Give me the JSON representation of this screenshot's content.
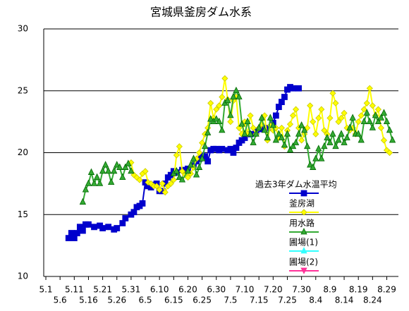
{
  "chart_data": {
    "type": "line",
    "title": "宮城県釜房ダム水系",
    "xlim": [
      -0.75,
      124.1
    ],
    "ylim": [
      10,
      30
    ],
    "yticks": [
      10,
      15,
      20,
      25,
      30
    ],
    "grid": true,
    "xticks": [
      {
        "value": 0,
        "label": "5.1"
      },
      {
        "value": 5,
        "label": "5.6"
      },
      {
        "value": 10,
        "label": "5.11"
      },
      {
        "value": 15,
        "label": "5.16"
      },
      {
        "value": 20,
        "label": "5.21"
      },
      {
        "value": 25,
        "label": "5.26"
      },
      {
        "value": 30,
        "label": "5.31"
      },
      {
        "value": 35,
        "label": "6.5"
      },
      {
        "value": 40,
        "label": "6.10"
      },
      {
        "value": 45,
        "label": "6.15"
      },
      {
        "value": 50,
        "label": "6.20"
      },
      {
        "value": 55,
        "label": "6.25"
      },
      {
        "value": 60,
        "label": "6.30"
      },
      {
        "value": 65,
        "label": "7.5"
      },
      {
        "value": 70,
        "label": "7.10"
      },
      {
        "value": 75,
        "label": "7.15"
      },
      {
        "value": 80,
        "label": "7.20"
      },
      {
        "value": 85,
        "label": "7.25"
      },
      {
        "value": 90,
        "label": "7.30"
      },
      {
        "value": 95,
        "label": "8.4"
      },
      {
        "value": 100,
        "label": "8.9"
      },
      {
        "value": 105,
        "label": "8.14"
      },
      {
        "value": 110,
        "label": "8.19"
      },
      {
        "value": 115,
        "label": "8.24"
      },
      {
        "value": 120,
        "label": "8.29"
      }
    ],
    "series": [
      {
        "name": "過去3年ダム水温平均",
        "color": "#0000cc",
        "marker": "square",
        "x": [
          8,
          9,
          10,
          11,
          12,
          13,
          14,
          15,
          17,
          19,
          20,
          22,
          24,
          25,
          27,
          28,
          30,
          31,
          32,
          33,
          34,
          35,
          36,
          37,
          38,
          39,
          40,
          41,
          42,
          43,
          44,
          45,
          46,
          48,
          50,
          52,
          53,
          54,
          55,
          56,
          57,
          58,
          59,
          60,
          61,
          62,
          64,
          65,
          66,
          67,
          68,
          69,
          70,
          72,
          74,
          76,
          78,
          80,
          81,
          82,
          83,
          84,
          85,
          86,
          87,
          89
        ],
        "values": [
          13.1,
          13.5,
          13.1,
          13.5,
          14.0,
          13.7,
          14.2,
          14.2,
          14.0,
          14.1,
          13.9,
          14.0,
          13.8,
          13.9,
          14.3,
          14.7,
          15.0,
          15.2,
          15.6,
          15.7,
          15.9,
          17.6,
          17.3,
          17.2,
          17.4,
          17.5,
          16.9,
          16.9,
          17.5,
          18.0,
          18.2,
          18.5,
          18.4,
          18.6,
          18.7,
          19.0,
          19.3,
          19.5,
          19.8,
          19.7,
          19.3,
          20.2,
          20.3,
          20.3,
          20.2,
          20.3,
          20.2,
          20.3,
          20.0,
          20.4,
          20.8,
          21.0,
          21.2,
          21.5,
          21.7,
          21.9,
          22.0,
          22.4,
          23.0,
          23.7,
          24.1,
          24.5,
          25.1,
          25.3,
          25.2,
          25.2
        ]
      },
      {
        "name": "釜房湖",
        "color": "#ffff00",
        "marker": "diamond",
        "x": [
          30,
          31,
          32,
          33,
          34,
          35,
          36,
          37,
          38,
          39,
          40,
          41,
          42,
          43,
          44,
          45,
          46,
          47,
          48,
          49,
          50,
          51,
          52,
          53,
          54,
          55,
          56,
          57,
          58,
          59,
          60,
          61,
          62,
          63,
          64,
          65,
          66,
          67,
          68,
          69,
          70,
          71,
          72,
          73,
          74,
          75,
          76,
          77,
          78,
          79,
          80,
          81,
          82,
          83,
          84,
          85,
          86,
          87,
          88,
          89,
          90,
          91,
          92,
          93,
          94,
          95,
          96,
          97,
          98,
          99,
          100,
          101,
          102,
          103,
          104,
          105,
          106,
          107,
          108,
          109,
          110,
          111,
          112,
          113,
          114,
          115,
          116,
          117,
          118,
          119,
          120,
          121
        ],
        "values": [
          19.2,
          18.2,
          18.0,
          17.8,
          18.3,
          18.5,
          17.6,
          17.5,
          17.3,
          17.3,
          17.0,
          17.5,
          16.8,
          17.3,
          17.5,
          17.8,
          19.8,
          20.5,
          18.5,
          18.2,
          18.0,
          18.3,
          18.8,
          19.5,
          20.0,
          20.8,
          21.5,
          22.0,
          24.0,
          22.8,
          23.5,
          23.8,
          24.5,
          26.0,
          24.3,
          22.5,
          24.2,
          24.5,
          22.0,
          21.5,
          22.5,
          21.5,
          23.0,
          22.0,
          21.5,
          22.0,
          22.3,
          23.0,
          21.0,
          22.2,
          21.8,
          22.0,
          21.2,
          22.0,
          20.5,
          21.8,
          22.3,
          23.0,
          23.5,
          22.0,
          21.0,
          21.5,
          22.0,
          23.8,
          22.5,
          21.5,
          22.8,
          23.5,
          21.8,
          21.5,
          22.8,
          24.8,
          24.0,
          22.5,
          22.8,
          23.2,
          22.0,
          21.8,
          22.0,
          21.5,
          22.5,
          23.0,
          23.5,
          24.0,
          25.2,
          23.8,
          23.0,
          23.5,
          22.0,
          21.0,
          20.2,
          20.0
        ]
      },
      {
        "name": "用水路",
        "color": "#33aa33",
        "marker": "triangle",
        "x": [
          13,
          14,
          15,
          16,
          17,
          18,
          19,
          20,
          21,
          22,
          23,
          24,
          25,
          26,
          27,
          28,
          29,
          30,
          45,
          46,
          47,
          48,
          50,
          51,
          52,
          53,
          54,
          55,
          56,
          57,
          58,
          59,
          60,
          61,
          62,
          63,
          64,
          65,
          66,
          67,
          68,
          69,
          70,
          71,
          72,
          73,
          74,
          75,
          76,
          77,
          78,
          79,
          80,
          81,
          82,
          83,
          84,
          85,
          86,
          87,
          88,
          89,
          90,
          91,
          92,
          93,
          94,
          95,
          96,
          97,
          98,
          99,
          100,
          101,
          102,
          103,
          104,
          105,
          106,
          107,
          108,
          109,
          110,
          111,
          112,
          113,
          114,
          115,
          116,
          117,
          118,
          119,
          120,
          121,
          122
        ],
        "values": [
          16.0,
          17.0,
          17.5,
          18.4,
          17.5,
          18.0,
          17.5,
          18.5,
          19.0,
          18.5,
          17.6,
          18.5,
          19.0,
          18.8,
          18.0,
          18.8,
          19.1,
          18.5,
          18.3,
          18.5,
          18.0,
          17.8,
          18.5,
          19.0,
          19.5,
          18.2,
          18.8,
          19.5,
          20.5,
          21.6,
          22.7,
          22.5,
          22.7,
          22.5,
          21.8,
          24.0,
          24.2,
          23.0,
          24.5,
          25.0,
          24.5,
          22.3,
          21.5,
          22.5,
          21.5,
          20.8,
          21.5,
          22.0,
          22.8,
          21.8,
          21.2,
          22.8,
          22.2,
          21.0,
          21.5,
          21.2,
          20.6,
          21.5,
          20.2,
          20.5,
          20.8,
          21.5,
          22.2,
          21.8,
          20.5,
          19.0,
          18.8,
          19.5,
          20.3,
          19.5,
          20.5,
          21.2,
          20.8,
          21.5,
          20.5,
          21.0,
          21.5,
          20.8,
          21.2,
          22.0,
          22.8,
          21.5,
          21.5,
          21.0,
          22.5,
          23.2,
          22.5,
          22.0,
          23.0,
          22.5,
          22.8,
          23.2,
          22.5,
          21.8,
          21.0
        ]
      },
      {
        "name": "圃場(1)",
        "color": "#33ffff",
        "marker": "triangle",
        "x": [],
        "values": []
      },
      {
        "name": "圃場(2)",
        "color": "#ff3399",
        "marker": "triangle-down",
        "x": [],
        "values": []
      }
    ]
  }
}
